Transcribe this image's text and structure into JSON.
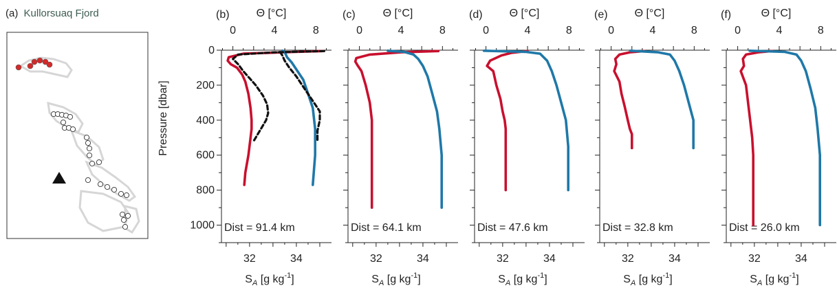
{
  "colors": {
    "temperature": "#c8102e",
    "salinity": "#1f78a8",
    "model": "#111111",
    "map_land": "#d6d6d6",
    "map_site": "#d42a2a",
    "title_highlight": "#3d5c52"
  },
  "map_panel": {
    "label": "(a)",
    "title": "Kullorsuaq Fjord",
    "station_markers": "circles",
    "glacier_marker": "triangle"
  },
  "shared_axes": {
    "y_label": "Pressure [dbar]",
    "y_ticks": [
      "0",
      "200",
      "400",
      "600",
      "800",
      "1000"
    ],
    "top_label": "Θ [°C]",
    "top_ticks": [
      "0",
      "4",
      "8"
    ],
    "bottom_label_main": "S",
    "bottom_label_sub": "A",
    "bottom_label_rest": " [g kg",
    "bottom_label_sup": "-1",
    "bottom_label_end": "]",
    "bottom_ticks": [
      "32",
      "34"
    ]
  },
  "chart_data": [
    {
      "type": "line",
      "panel": "(b)",
      "annotation": "Dist = 91.4 km",
      "xlabel": "S_A [g kg-1]",
      "x2label": "Θ [°C]",
      "ylabel": "Pressure [dbar]",
      "xlim_salinity": [
        30.8,
        35.5
      ],
      "xlim_theta": [
        -1.1,
        9.5
      ],
      "ylim": [
        1100,
        0
      ],
      "series": [
        {
          "variable": "theta",
          "style": "solid",
          "points": [
            [
              8.6,
              5
            ],
            [
              6,
              10
            ],
            [
              1,
              20
            ],
            [
              -0.4,
              40
            ],
            [
              -0.5,
              60
            ],
            [
              -0.2,
              80
            ],
            [
              0.4,
              100
            ],
            [
              0.9,
              140
            ],
            [
              1.2,
              180
            ],
            [
              1.5,
              250
            ],
            [
              1.7,
              330
            ],
            [
              1.8,
              400
            ],
            [
              1.8,
              450
            ],
            [
              1.7,
              500
            ],
            [
              1.5,
              600
            ],
            [
              1.2,
              700
            ],
            [
              1.1,
              770
            ]
          ]
        },
        {
          "variable": "salinity",
          "style": "solid",
          "points": [
            [
              33.4,
              3
            ],
            [
              33.5,
              10
            ],
            [
              33.6,
              40
            ],
            [
              33.8,
              70
            ],
            [
              34.0,
              110
            ],
            [
              34.3,
              170
            ],
            [
              34.5,
              250
            ],
            [
              34.7,
              330
            ],
            [
              34.8,
              450
            ],
            [
              34.8,
              600
            ],
            [
              34.7,
              770
            ]
          ]
        },
        {
          "variable": "theta_model",
          "style": "dashed",
          "points": [
            [
              8.8,
              5
            ],
            [
              4,
              12
            ],
            [
              0.5,
              25
            ],
            [
              0,
              50
            ],
            [
              0.5,
              80
            ],
            [
              1,
              120
            ],
            [
              1.6,
              160
            ],
            [
              2.2,
              200
            ],
            [
              2.9,
              260
            ],
            [
              3.3,
              310
            ],
            [
              3.4,
              360
            ],
            [
              3.2,
              400
            ],
            [
              2.8,
              440
            ],
            [
              2.4,
              480
            ],
            [
              2.0,
              520
            ]
          ]
        },
        {
          "variable": "salinity_model",
          "style": "dashed",
          "points": [
            [
              33.3,
              10
            ],
            [
              33.4,
              30
            ],
            [
              33.5,
              60
            ],
            [
              33.7,
              100
            ],
            [
              34.0,
              150
            ],
            [
              34.3,
              210
            ],
            [
              34.7,
              290
            ],
            [
              35.0,
              350
            ],
            [
              35.0,
              400
            ],
            [
              34.9,
              460
            ],
            [
              34.9,
              520
            ]
          ]
        }
      ]
    },
    {
      "type": "line",
      "panel": "(c)",
      "annotation": "Dist = 64.1 km",
      "xlabel": "S_A [g kg-1]",
      "x2label": "Θ [°C]",
      "ylabel": "Pressure [dbar]",
      "xlim_salinity": [
        30.8,
        35.5
      ],
      "xlim_theta": [
        -1.1,
        9.5
      ],
      "ylim": [
        1100,
        0
      ],
      "series": [
        {
          "variable": "theta",
          "style": "solid",
          "points": [
            [
              7.6,
              5
            ],
            [
              4,
              12
            ],
            [
              1,
              25
            ],
            [
              -0.3,
              45
            ],
            [
              -0.4,
              65
            ],
            [
              -0.2,
              85
            ],
            [
              0.2,
              120
            ],
            [
              0.6,
              200
            ],
            [
              1.0,
              300
            ],
            [
              1.2,
              400
            ],
            [
              1.2,
              450
            ],
            [
              1.2,
              600
            ],
            [
              1.2,
              900
            ]
          ]
        },
        {
          "variable": "salinity",
          "style": "solid",
          "points": [
            [
              32.5,
              3
            ],
            [
              33.2,
              10
            ],
            [
              33.6,
              25
            ],
            [
              33.8,
              50
            ],
            [
              34.0,
              90
            ],
            [
              34.2,
              150
            ],
            [
              34.4,
              250
            ],
            [
              34.6,
              350
            ],
            [
              34.7,
              450
            ],
            [
              34.8,
              600
            ],
            [
              34.8,
              900
            ]
          ]
        }
      ]
    },
    {
      "type": "line",
      "panel": "(d)",
      "annotation": "Dist = 47.6 km",
      "xlabel": "S_A [g kg-1]",
      "x2label": "Θ [°C]",
      "ylabel": "Pressure [dbar]",
      "xlim_salinity": [
        30.8,
        35.5
      ],
      "xlim_theta": [
        -1.1,
        9.5
      ],
      "ylim": [
        1100,
        0
      ],
      "series": [
        {
          "variable": "theta",
          "style": "solid",
          "points": [
            [
              4,
              5
            ],
            [
              2.5,
              15
            ],
            [
              1.5,
              30
            ],
            [
              0.4,
              60
            ],
            [
              0.1,
              90
            ],
            [
              0.7,
              120
            ],
            [
              1.0,
              200
            ],
            [
              1.4,
              280
            ],
            [
              1.6,
              350
            ],
            [
              1.8,
              400
            ],
            [
              1.9,
              450
            ],
            [
              1.9,
              600
            ],
            [
              1.9,
              800
            ]
          ]
        },
        {
          "variable": "salinity",
          "style": "solid",
          "points": [
            [
              31.2,
              3
            ],
            [
              33,
              10
            ],
            [
              33.6,
              20
            ],
            [
              33.9,
              60
            ],
            [
              34.1,
              120
            ],
            [
              34.3,
              200
            ],
            [
              34.5,
              300
            ],
            [
              34.7,
              400
            ],
            [
              34.8,
              550
            ],
            [
              34.8,
              800
            ]
          ]
        }
      ]
    },
    {
      "type": "line",
      "panel": "(e)",
      "annotation": "Dist = 32.8 km",
      "xlabel": "S_A [g kg-1]",
      "x2label": "Θ [°C]",
      "ylabel": "Pressure [dbar]",
      "xlim_salinity": [
        30.8,
        35.5
      ],
      "xlim_theta": [
        -1.1,
        9.5
      ],
      "ylim": [
        1100,
        0
      ],
      "series": [
        {
          "variable": "theta",
          "style": "solid",
          "points": [
            [
              3.2,
              5
            ],
            [
              1.8,
              12
            ],
            [
              0.8,
              25
            ],
            [
              0.4,
              50
            ],
            [
              0.5,
              80
            ],
            [
              0.3,
              120
            ],
            [
              0.8,
              180
            ],
            [
              1.0,
              250
            ],
            [
              1.3,
              320
            ],
            [
              1.6,
              400
            ],
            [
              1.8,
              450
            ],
            [
              2.0,
              480
            ],
            [
              2.0,
              560
            ]
          ]
        },
        {
          "variable": "salinity",
          "style": "solid",
          "points": [
            [
              32.1,
              3
            ],
            [
              33.3,
              12
            ],
            [
              33.8,
              25
            ],
            [
              34.0,
              60
            ],
            [
              34.2,
              120
            ],
            [
              34.4,
              200
            ],
            [
              34.6,
              300
            ],
            [
              34.8,
              400
            ],
            [
              34.8,
              480
            ],
            [
              34.8,
              560
            ]
          ]
        }
      ]
    },
    {
      "type": "line",
      "panel": "(f)",
      "annotation": "Dist = 26.0 km",
      "xlabel": "S_A [g kg-1]",
      "x2label": "Θ [°C]",
      "ylabel": "Pressure [dbar]",
      "xlim_salinity": [
        30.8,
        35.5
      ],
      "xlim_theta": [
        -1.1,
        9.5
      ],
      "ylim": [
        1100,
        0
      ],
      "series": [
        {
          "variable": "theta",
          "style": "solid",
          "points": [
            [
              3.3,
              5
            ],
            [
              2,
              12
            ],
            [
              0.8,
              25
            ],
            [
              0.5,
              50
            ],
            [
              0.6,
              90
            ],
            [
              0.3,
              120
            ],
            [
              0.8,
              200
            ],
            [
              1.0,
              300
            ],
            [
              1.2,
              400
            ],
            [
              1.4,
              500
            ],
            [
              1.5,
              600
            ],
            [
              1.5,
              800
            ],
            [
              1.5,
              1000
            ]
          ]
        },
        {
          "variable": "salinity",
          "style": "solid",
          "points": [
            [
              31.8,
              3
            ],
            [
              33.3,
              10
            ],
            [
              33.8,
              25
            ],
            [
              34.0,
              60
            ],
            [
              34.2,
              120
            ],
            [
              34.4,
              220
            ],
            [
              34.6,
              330
            ],
            [
              34.7,
              450
            ],
            [
              34.8,
              600
            ],
            [
              34.8,
              800
            ],
            [
              34.8,
              1000
            ]
          ]
        }
      ]
    }
  ]
}
